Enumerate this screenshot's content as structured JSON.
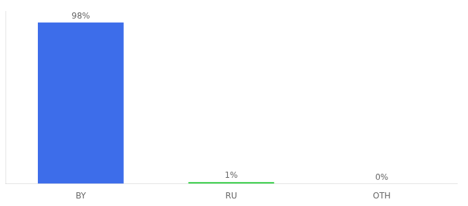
{
  "chart_data": {
    "type": "bar",
    "categories": [
      "BY",
      "RU",
      "OTH"
    ],
    "values": [
      98,
      1,
      0
    ],
    "value_labels": [
      "98%",
      "1%",
      "0%"
    ],
    "colors": [
      "#3d6dea",
      "#2ecc40",
      "#3d6dea"
    ],
    "ylim": [
      0,
      105
    ],
    "grid": false,
    "data_labels": true,
    "tick_labels": "x"
  }
}
